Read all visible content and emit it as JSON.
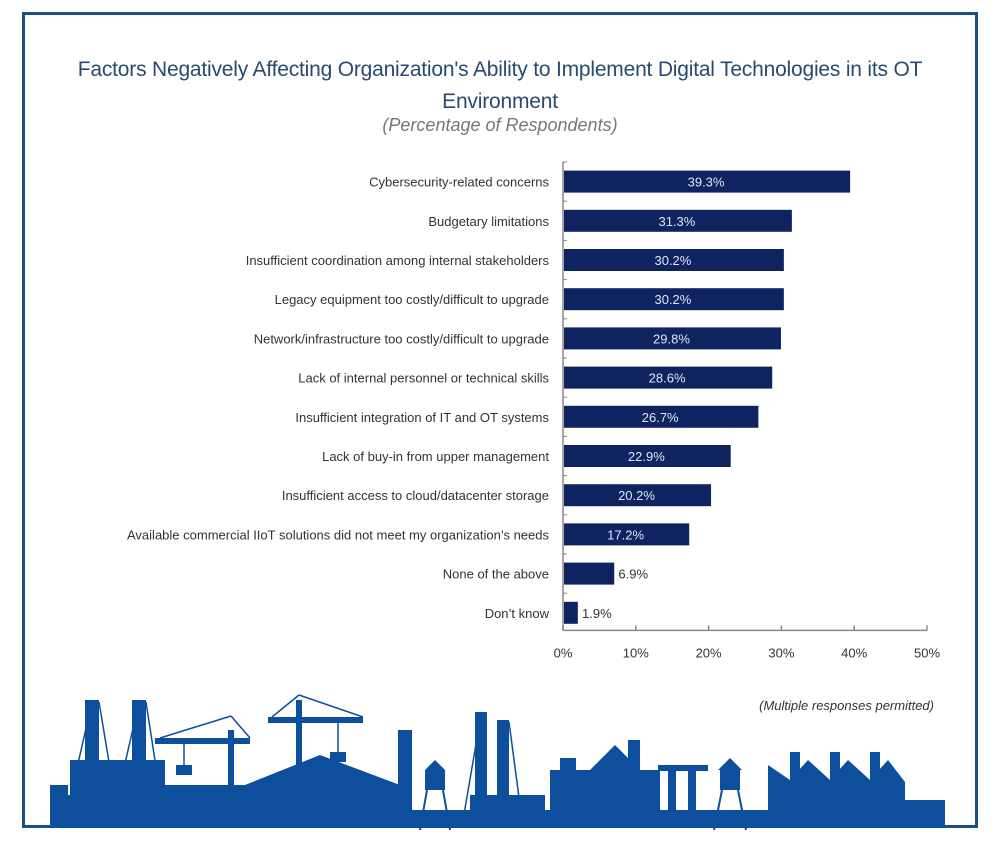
{
  "chart_data": {
    "type": "bar",
    "orientation": "horizontal",
    "title": "Factors Negatively Affecting Organization's Ability to Implement Digital Technologies in its OT Environment",
    "subtitle": "(Percentage of Respondents)",
    "categories": [
      "Cybersecurity-related concerns",
      "Budgetary limitations",
      "Insufficient coordination among internal stakeholders",
      "Legacy equipment too costly/difficult to upgrade",
      "Network/infrastructure too costly/difficult to upgrade",
      "Lack of internal personnel or technical skills",
      "Insufficient integration of IT and OT systems",
      "Lack of buy-in from upper management",
      "Insufficient access to cloud/datacenter storage",
      "Available commercial IIoT solutions did not meet my organization’s needs",
      "None of the above",
      "Don’t know"
    ],
    "values": [
      39.3,
      31.3,
      30.2,
      30.2,
      29.8,
      28.6,
      26.7,
      22.9,
      20.2,
      17.2,
      6.9,
      1.9
    ],
    "value_labels": [
      "39.3%",
      "31.3%",
      "30.2%",
      "30.2%",
      "29.8%",
      "28.6%",
      "26.7%",
      "22.9%",
      "20.2%",
      "17.2%",
      "6.9%",
      "1.9%"
    ],
    "xlabel": "",
    "ylabel": "",
    "xlim": [
      0,
      50
    ],
    "xticks": [
      0,
      10,
      20,
      30,
      40,
      50
    ],
    "xtick_labels": [
      "0%",
      "10%",
      "20%",
      "30%",
      "40%",
      "50%"
    ],
    "grid": false,
    "legend": "none",
    "bar_color": "#0e2360",
    "annotation": "(Multiple responses permitted)"
  },
  "colors": {
    "frame": "#1b4f82",
    "title": "#2a4a6e",
    "skyline": "#0d4f9c"
  }
}
